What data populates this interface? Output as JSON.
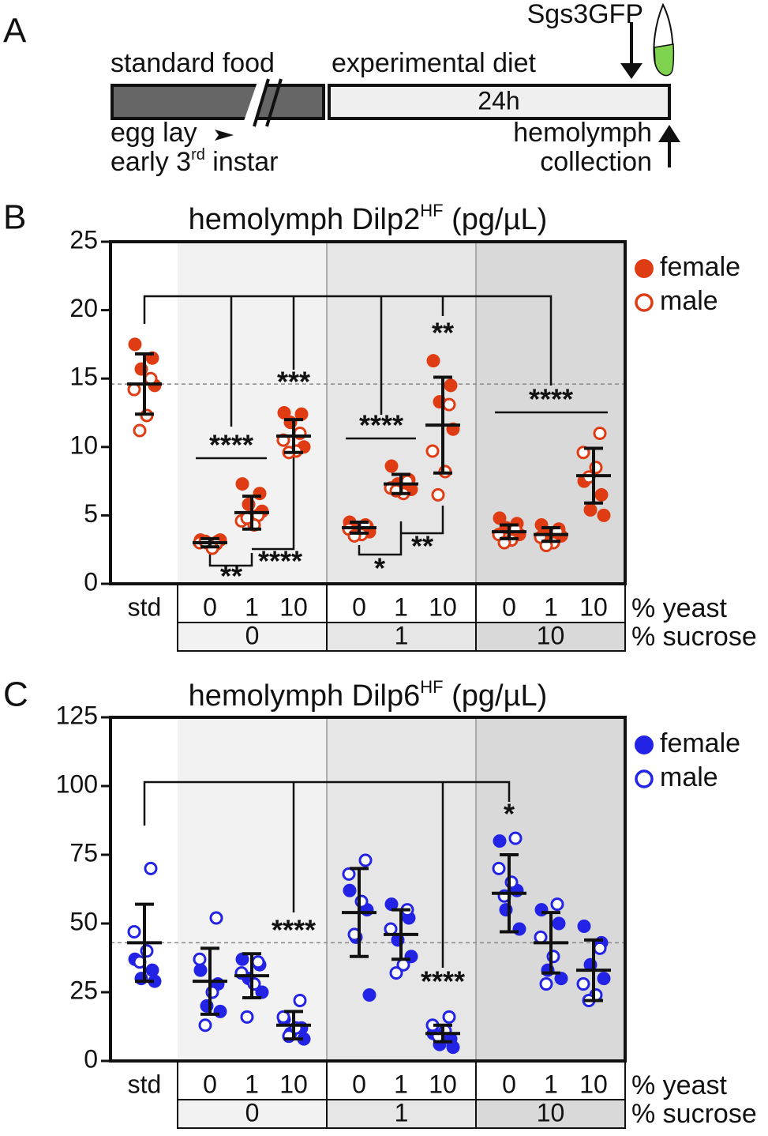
{
  "panel_labels": [
    "A",
    "B",
    "C"
  ],
  "diagram": {
    "stage1": "standard food",
    "stage2": "experimental diet",
    "duration": "24h",
    "marker": "Sgs3GFP",
    "start1": "egg lay",
    "start2_pre": "early 3",
    "start2_sup": "rd",
    "start2_post": " instar",
    "end1": "hemolymph",
    "end2": "collection"
  },
  "chart_data": [
    {
      "type": "dot",
      "title": "hemolymph Dilp2",
      "title_sup": "HF",
      "title_suffix": " (pg/µL)",
      "categories": [
        "std",
        "0",
        "1",
        "10",
        "0",
        "1",
        "10",
        "0",
        "1",
        "10"
      ],
      "x_label": "% yeast",
      "groups": [
        "0",
        "1",
        "10"
      ],
      "group_label": "% sucrose",
      "ylim": [
        0,
        25
      ],
      "yticks": [
        0,
        5,
        10,
        15,
        20,
        25
      ],
      "legend": "outside-right",
      "series": [
        {
          "name": "female",
          "color": "#e03c14",
          "marker": "filled",
          "values": [
            [
              17.5,
              16.5,
              15.7,
              14.5
            ],
            [
              3.2,
              3.1,
              3.0,
              3.2
            ],
            [
              7.3,
              6.6,
              5.8,
              5.3
            ],
            [
              12.5,
              12.4,
              11.8,
              10.0
            ],
            [
              4.5,
              4.2,
              4.0,
              3.8
            ],
            [
              8.6,
              7.6,
              7.3,
              6.9
            ],
            [
              16.3,
              14.5,
              13.3,
              11.3
            ],
            [
              4.8,
              4.4,
              4.1,
              3.6
            ],
            [
              4.3,
              4.0,
              3.7,
              3.5
            ],
            [
              7.5,
              6.5,
              5.4,
              5.0
            ]
          ]
        },
        {
          "name": "male",
          "color": "#e03c14",
          "marker": "open",
          "values": [
            [
              15.0,
              14.2,
              12.3,
              11.2
            ],
            [
              2.9,
              3.0,
              2.6,
              3.1
            ],
            [
              5.0,
              4.6,
              4.3,
              4.8
            ],
            [
              11.0,
              10.5,
              9.7,
              9.6
            ],
            [
              4.3,
              4.0,
              3.6,
              3.5
            ],
            [
              7.5,
              7.0,
              6.6,
              6.8
            ],
            [
              13.1,
              9.7,
              8.2,
              6.5
            ],
            [
              4.0,
              3.6,
              3.2,
              3.0
            ],
            [
              3.8,
              3.4,
              3.0,
              2.8
            ],
            [
              11.0,
              9.6,
              8.5,
              7.8
            ]
          ]
        }
      ],
      "means": [
        14.6,
        3.0,
        5.2,
        10.8,
        4.1,
        7.3,
        11.6,
        3.8,
        3.6,
        7.9
      ],
      "sd": [
        2.2,
        0.3,
        1.2,
        1.2,
        0.4,
        0.7,
        3.5,
        0.5,
        0.5,
        2.0
      ],
      "annotations": [
        "****",
        "***",
        "****",
        "**",
        "****",
        "**",
        "****",
        "*",
        "**"
      ]
    },
    {
      "type": "dot",
      "title": "hemolymph Dilp6",
      "title_sup": "HF",
      "title_suffix": " (pg/µL)",
      "categories": [
        "std",
        "0",
        "1",
        "10",
        "0",
        "1",
        "10",
        "0",
        "1",
        "10"
      ],
      "x_label": "% yeast",
      "groups": [
        "0",
        "1",
        "10"
      ],
      "group_label": "% sucrose",
      "ylim": [
        0,
        125
      ],
      "yticks": [
        0,
        25,
        50,
        75,
        100,
        125
      ],
      "legend": "outside-right",
      "series": [
        {
          "name": "female",
          "color": "#2323e6",
          "marker": "filled",
          "values": [
            [
              37,
              33,
              30,
              29
            ],
            [
              33,
              28,
              20,
              18
            ],
            [
              37,
              35,
              30,
              25
            ],
            [
              15,
              12,
              10,
              8
            ],
            [
              62,
              55,
              45,
              24
            ],
            [
              57,
              52,
              44,
              38
            ],
            [
              10,
              8,
              6,
              5
            ],
            [
              80,
              62,
              55,
              48
            ],
            [
              55,
              50,
              33,
              30
            ],
            [
              49,
              43,
              35,
              30
            ]
          ]
        },
        {
          "name": "male",
          "color": "#2323e6",
          "marker": "open",
          "values": [
            [
              70,
              47,
              40,
              36
            ],
            [
              52,
              37,
              25,
              13
            ],
            [
              36,
              32,
              28,
              16
            ],
            [
              22,
              16,
              12,
              9
            ],
            [
              73,
              68,
              58,
              46
            ],
            [
              55,
              48,
              35,
              32
            ],
            [
              16,
              13,
              11,
              9
            ],
            [
              81,
              70,
              65,
              60
            ],
            [
              57,
              45,
              38,
              28
            ],
            [
              41,
              28,
              24,
              22
            ]
          ]
        }
      ],
      "means": [
        43,
        29,
        31,
        13,
        54,
        46,
        10,
        61,
        43,
        33
      ],
      "sd": [
        14,
        12,
        8,
        5,
        16,
        9,
        3,
        14,
        11,
        11
      ],
      "annotations": [
        "****",
        "****",
        "*"
      ]
    }
  ]
}
